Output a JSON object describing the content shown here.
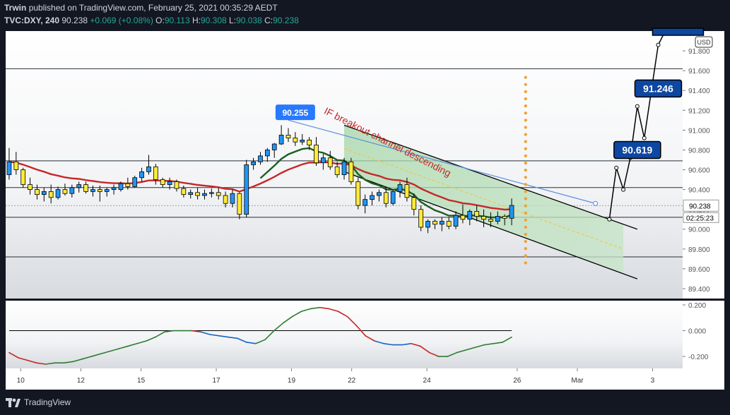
{
  "header": {
    "user": "Trwin",
    "published": "published on TradingView.com, February 25, 2021 00:35:29 AEDT",
    "symbol": "TVC:DXY, 240",
    "last": "90.238",
    "change": "+0.069 (+0.08%)",
    "o_label": "O:",
    "o": "90.113",
    "h_label": "H:",
    "h": "90.308",
    "l_label": "L:",
    "l": "90.038",
    "c_label": "C:",
    "c": "90.238"
  },
  "footer": {
    "brand": "TradingView"
  },
  "colors": {
    "background": "#131722",
    "candle_up": "#2196f3",
    "candle_down": "#ffeb3b",
    "ma_red": "#c62828",
    "ma_green": "#1b5e20",
    "channel_fill": "#a5d6a7",
    "label_box": "#0d47a1"
  },
  "chart_data": [
    {
      "type": "candlestick",
      "currency": "USD",
      "price_ylim": [
        89.3,
        92.0
      ],
      "y_ticks": [
        "89.400",
        "89.600",
        "89.800",
        "90.000",
        "90.200",
        "90.400",
        "90.600",
        "90.800",
        "91.000",
        "91.200",
        "91.400",
        "91.600",
        "91.800"
      ],
      "x_ticks": [
        {
          "t": 1,
          "label": "10"
        },
        {
          "t": 5,
          "label": "12"
        },
        {
          "t": 9,
          "label": "15"
        },
        {
          "t": 14,
          "label": "17"
        },
        {
          "t": 19,
          "label": "19"
        },
        {
          "t": 23,
          "label": "22"
        },
        {
          "t": 28,
          "label": "24"
        },
        {
          "t": 34,
          "label": "26"
        },
        {
          "t": 38,
          "label": "Mar"
        },
        {
          "t": 43,
          "label": "3"
        }
      ],
      "last_price": "90.238",
      "countdown": "02:25:23",
      "horizontal_levels": [
        91.62,
        90.69,
        90.42,
        90.12,
        89.72
      ],
      "ohlc": [
        [
          90.55,
          90.82,
          90.5,
          90.68
        ],
        [
          90.68,
          90.78,
          90.55,
          90.6
        ],
        [
          90.6,
          90.62,
          90.42,
          90.45
        ],
        [
          90.45,
          90.52,
          90.35,
          90.4
        ],
        [
          90.4,
          90.45,
          90.3,
          90.35
        ],
        [
          90.35,
          90.42,
          90.28,
          90.38
        ],
        [
          90.38,
          90.45,
          90.26,
          90.32
        ],
        [
          90.32,
          90.43,
          90.3,
          90.4
        ],
        [
          90.4,
          90.46,
          90.34,
          90.36
        ],
        [
          90.36,
          90.45,
          90.32,
          90.42
        ],
        [
          90.42,
          90.48,
          90.37,
          90.45
        ],
        [
          90.45,
          90.48,
          90.36,
          90.38
        ],
        [
          90.38,
          90.44,
          90.33,
          90.4
        ],
        [
          90.4,
          90.44,
          90.28,
          90.38
        ],
        [
          90.38,
          90.42,
          90.33,
          90.4
        ],
        [
          90.4,
          90.45,
          90.35,
          90.42
        ],
        [
          90.4,
          90.48,
          90.38,
          90.46
        ],
        [
          90.46,
          90.52,
          90.4,
          90.43
        ],
        [
          90.43,
          90.54,
          90.42,
          90.52
        ],
        [
          90.52,
          90.62,
          90.48,
          90.58
        ],
        [
          90.58,
          90.75,
          90.55,
          90.63
        ],
        [
          90.63,
          90.66,
          90.45,
          90.5
        ],
        [
          90.5,
          90.52,
          90.42,
          90.45
        ],
        [
          90.45,
          90.52,
          90.4,
          90.48
        ],
        [
          90.48,
          90.5,
          90.38,
          90.41
        ],
        [
          90.41,
          90.44,
          90.32,
          90.35
        ],
        [
          90.35,
          90.4,
          90.31,
          90.37
        ],
        [
          90.37,
          90.42,
          90.3,
          90.34
        ],
        [
          90.34,
          90.4,
          90.3,
          90.36
        ],
        [
          90.36,
          90.41,
          90.32,
          90.37
        ],
        [
          90.37,
          90.42,
          90.3,
          90.34
        ],
        [
          90.34,
          90.38,
          90.22,
          90.26
        ],
        [
          90.26,
          90.4,
          90.22,
          90.36
        ],
        [
          90.36,
          90.37,
          90.1,
          90.15
        ],
        [
          90.15,
          90.7,
          90.12,
          90.65
        ],
        [
          90.65,
          90.72,
          90.6,
          90.68
        ],
        [
          90.68,
          90.78,
          90.65,
          90.74
        ],
        [
          90.74,
          90.82,
          90.68,
          90.8
        ],
        [
          90.8,
          90.87,
          90.72,
          90.86
        ],
        [
          90.86,
          91.05,
          90.85,
          90.95
        ],
        [
          90.95,
          91.02,
          90.88,
          90.92
        ],
        [
          90.92,
          90.98,
          90.84,
          90.88
        ],
        [
          90.88,
          90.96,
          90.85,
          90.9
        ],
        [
          90.9,
          90.93,
          90.8,
          90.85
        ],
        [
          90.85,
          90.93,
          90.64,
          90.67
        ],
        [
          90.67,
          90.76,
          90.6,
          90.72
        ],
        [
          90.72,
          90.79,
          90.6,
          90.63
        ],
        [
          90.63,
          90.68,
          90.52,
          90.55
        ],
        [
          90.55,
          90.72,
          90.5,
          90.68
        ],
        [
          90.68,
          90.72,
          90.45,
          90.48
        ],
        [
          90.48,
          90.52,
          90.2,
          90.24
        ],
        [
          90.24,
          90.35,
          90.16,
          90.3
        ],
        [
          90.3,
          90.38,
          90.24,
          90.34
        ],
        [
          90.34,
          90.4,
          90.28,
          90.37
        ],
        [
          90.37,
          90.42,
          90.22,
          90.26
        ],
        [
          90.26,
          90.4,
          90.24,
          90.38
        ],
        [
          90.38,
          90.48,
          90.32,
          90.45
        ],
        [
          90.45,
          90.52,
          90.28,
          90.32
        ],
        [
          90.32,
          90.36,
          90.14,
          90.2
        ],
        [
          90.2,
          90.24,
          89.98,
          90.02
        ],
        [
          90.02,
          90.1,
          89.96,
          90.08
        ],
        [
          90.08,
          90.1,
          90.0,
          90.05
        ],
        [
          90.05,
          90.12,
          89.98,
          90.08
        ],
        [
          90.08,
          90.12,
          90.0,
          90.03
        ],
        [
          90.03,
          90.18,
          90.0,
          90.14
        ],
        [
          90.14,
          90.25,
          90.06,
          90.1
        ],
        [
          90.1,
          90.2,
          90.04,
          90.18
        ],
        [
          90.18,
          90.24,
          90.08,
          90.13
        ],
        [
          90.13,
          90.2,
          90.02,
          90.1
        ],
        [
          90.1,
          90.17,
          90.02,
          90.08
        ],
        [
          90.08,
          90.18,
          90.05,
          90.13
        ],
        [
          90.13,
          90.15,
          90.04,
          90.11
        ],
        [
          90.11,
          90.31,
          90.04,
          90.24
        ]
      ],
      "channel": {
        "upper": [
          [
            48,
            91.05
          ],
          [
            88,
            90.05
          ]
        ],
        "lower": [
          [
            48,
            90.58
          ],
          [
            88,
            89.55
          ]
        ]
      },
      "breakout_path": [
        [
          86,
          90.1
        ],
        [
          87,
          90.62
        ],
        [
          88,
          90.4
        ],
        [
          89,
          90.72
        ],
        [
          90,
          91.24
        ],
        [
          91,
          90.92
        ],
        [
          93,
          91.86
        ],
        [
          94,
          92.0
        ]
      ],
      "labels": [
        {
          "text": "90.255",
          "x": 41,
          "price": 91.18,
          "style": "light"
        },
        {
          "text": "90.619",
          "x": 90,
          "price": 90.8,
          "style": "dark"
        },
        {
          "text": "91.246",
          "x": 93,
          "price": 91.42,
          "style": "dark"
        }
      ],
      "annotation": "IF breakout channel descending",
      "extra_slots": 24
    },
    {
      "type": "line",
      "ylim": [
        -0.26,
        0.2
      ],
      "y_ticks": [
        "0.200",
        "0.000",
        "-0.200"
      ],
      "zero_line": 0.0,
      "values": [
        -0.17,
        -0.21,
        -0.23,
        -0.25,
        -0.26,
        -0.25,
        -0.25,
        -0.24,
        -0.22,
        -0.2,
        -0.18,
        -0.16,
        -0.14,
        -0.12,
        -0.1,
        -0.08,
        -0.05,
        -0.01,
        0.0,
        0.0,
        0.0,
        -0.01,
        -0.03,
        -0.04,
        -0.05,
        -0.06,
        -0.09,
        -0.1,
        -0.07,
        0.0,
        0.06,
        0.11,
        0.15,
        0.17,
        0.18,
        0.17,
        0.15,
        0.11,
        0.04,
        -0.04,
        -0.08,
        -0.1,
        -0.11,
        -0.11,
        -0.1,
        -0.12,
        -0.17,
        -0.2,
        -0.2,
        -0.17,
        -0.15,
        -0.13,
        -0.11,
        -0.1,
        -0.09,
        -0.05
      ]
    }
  ]
}
